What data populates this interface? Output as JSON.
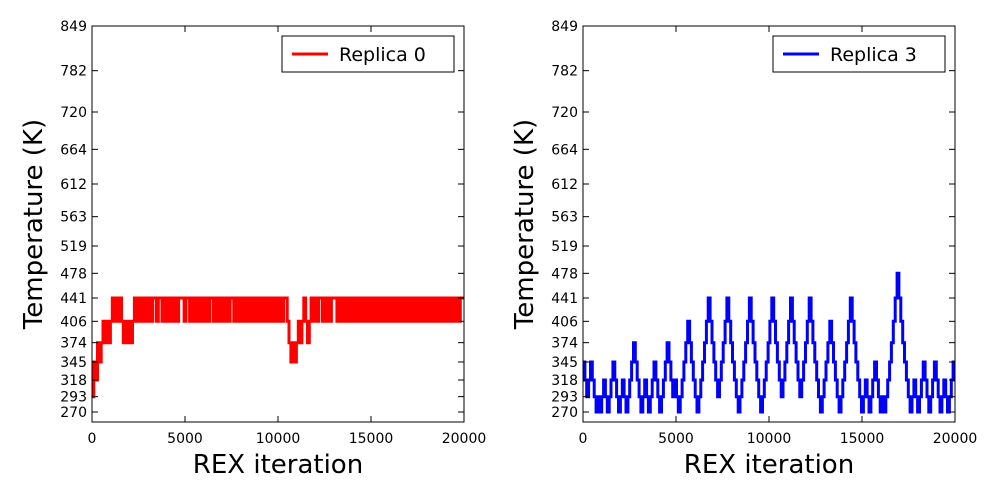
{
  "chart_data": [
    {
      "type": "line",
      "xlabel": "REX iteration",
      "ylabel": "Temperature (K)",
      "xlim": [
        0,
        20000
      ],
      "ylim": [
        255,
        849
      ],
      "xticks": [
        0,
        5000,
        10000,
        15000,
        20000
      ],
      "yticks": [
        270,
        293,
        318,
        345,
        374,
        406,
        441,
        478,
        519,
        563,
        612,
        664,
        720,
        782,
        849
      ],
      "grid": false,
      "legend": "top-right",
      "series": [
        {
          "name": "Replica 0",
          "color": "#ff0000",
          "levels": [
            270,
            293,
            318,
            345,
            374,
            406,
            441
          ],
          "level_steps": [
            1,
            3,
            2,
            4,
            3,
            4,
            5,
            4,
            5,
            4,
            5,
            6,
            5,
            6,
            5,
            6,
            5,
            4,
            5,
            4,
            5,
            4,
            5,
            6,
            5,
            6,
            5,
            6,
            5,
            6,
            5,
            6,
            5,
            6,
            6,
            5,
            6,
            6,
            5,
            6,
            5,
            6,
            5,
            6,
            5,
            6,
            5,
            6,
            6,
            6,
            5,
            6,
            6,
            5,
            6,
            5,
            6,
            5,
            6,
            5,
            6,
            5,
            6,
            5,
            6,
            6,
            5,
            6,
            5,
            6,
            5,
            6,
            5,
            6,
            5,
            6,
            6,
            5,
            6,
            5,
            6,
            5,
            6,
            5,
            6,
            5,
            6,
            5,
            6,
            5,
            6,
            5,
            6,
            5,
            6,
            5,
            6,
            5,
            6,
            5,
            6,
            5,
            6,
            5,
            6,
            6,
            5,
            4,
            3,
            4,
            3,
            4,
            5,
            4,
            5,
            6,
            5,
            4,
            5,
            6,
            5,
            6,
            5,
            6,
            6,
            5,
            6,
            5,
            6,
            5,
            6,
            6,
            6,
            5,
            6,
            5,
            6,
            5,
            6,
            5,
            6,
            5,
            6,
            5,
            6,
            5,
            6,
            5,
            6,
            5,
            6,
            5,
            6,
            5,
            6,
            5,
            6,
            5,
            6,
            5,
            6,
            5,
            6,
            5,
            6,
            5,
            6,
            5,
            6,
            5,
            6,
            5,
            6,
            5,
            6,
            5,
            6,
            5,
            6,
            5,
            6,
            5,
            6,
            5,
            6,
            5,
            6,
            5,
            6,
            5,
            6,
            5,
            6,
            5,
            6,
            5,
            6,
            5,
            6,
            5,
            6,
            6
          ]
        },
        {
          "name": "Replica 3",
          "color": "#0000ff",
          "levels": [
            270,
            293,
            318,
            345,
            374,
            406,
            441,
            478
          ],
          "level_steps": [
            3,
            2,
            1,
            2,
            3,
            2,
            1,
            0,
            1,
            0,
            1,
            2,
            1,
            0,
            1,
            2,
            3,
            2,
            1,
            0,
            1,
            2,
            1,
            0,
            1,
            2,
            3,
            4,
            3,
            2,
            1,
            0,
            1,
            2,
            1,
            0,
            1,
            2,
            3,
            2,
            1,
            0,
            1,
            2,
            3,
            4,
            3,
            2,
            1,
            2,
            1,
            0,
            1,
            2,
            3,
            4,
            5,
            4,
            3,
            2,
            1,
            0,
            1,
            2,
            3,
            4,
            5,
            6,
            5,
            4,
            3,
            2,
            1,
            2,
            3,
            4,
            5,
            6,
            5,
            4,
            3,
            2,
            1,
            0,
            1,
            2,
            3,
            4,
            5,
            6,
            5,
            4,
            3,
            2,
            1,
            0,
            1,
            2,
            3,
            4,
            5,
            6,
            5,
            4,
            3,
            2,
            1,
            2,
            3,
            4,
            5,
            6,
            5,
            4,
            3,
            2,
            1,
            2,
            3,
            4,
            5,
            6,
            5,
            4,
            3,
            2,
            1,
            0,
            1,
            2,
            3,
            4,
            5,
            4,
            3,
            2,
            1,
            0,
            1,
            2,
            3,
            4,
            5,
            6,
            5,
            4,
            3,
            2,
            1,
            0,
            1,
            2,
            1,
            0,
            1,
            2,
            3,
            2,
            1,
            0,
            1,
            0,
            1,
            2,
            3,
            4,
            5,
            6,
            7,
            6,
            5,
            4,
            3,
            2,
            1,
            0,
            1,
            2,
            1,
            0,
            1,
            2,
            3,
            2,
            1,
            0,
            1,
            2,
            3,
            2,
            1,
            0,
            1,
            2,
            1,
            0,
            1,
            2,
            3
          ]
        }
      ]
    }
  ]
}
